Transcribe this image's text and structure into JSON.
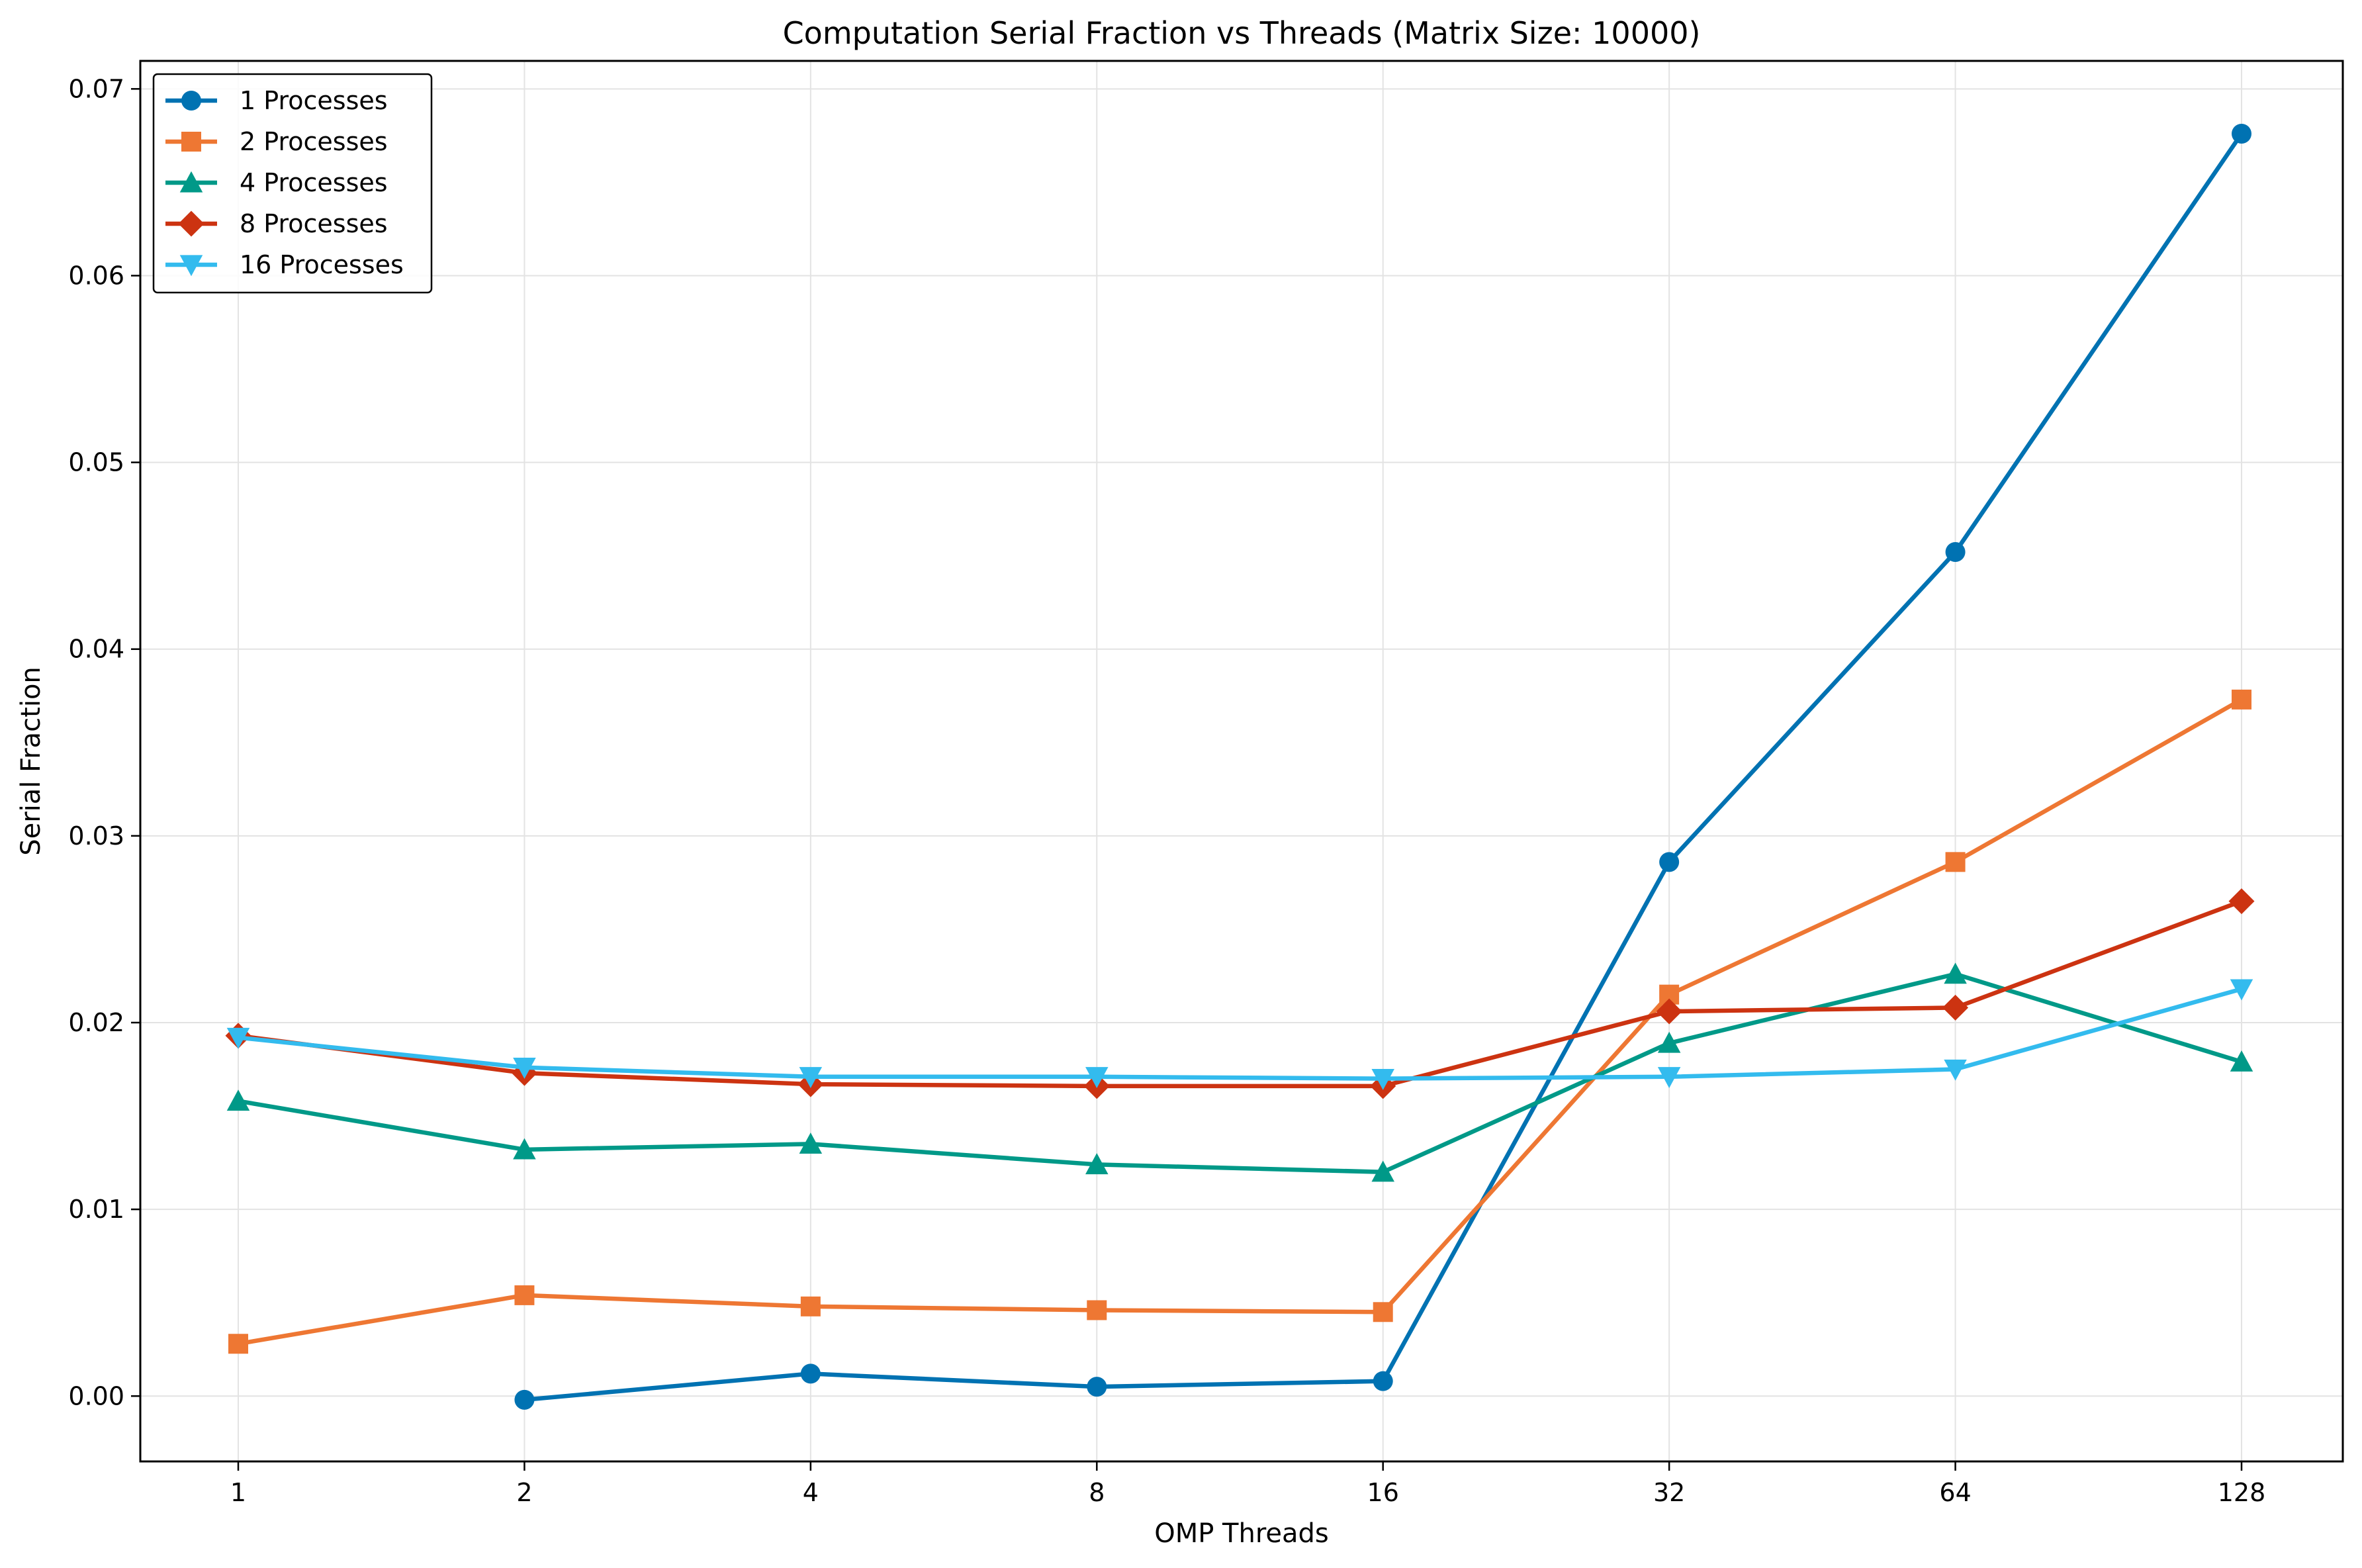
{
  "chart_data": {
    "type": "line",
    "title": "Computation Serial Fraction vs Threads (Matrix Size: 10000)",
    "xlabel": "OMP Threads",
    "ylabel": "Serial Fraction",
    "x_scale": "log2",
    "x": [
      1,
      2,
      4,
      8,
      16,
      32,
      64,
      128
    ],
    "x_tick_labels": [
      "1",
      "2",
      "4",
      "8",
      "16",
      "32",
      "64",
      "128"
    ],
    "y_ticks": [
      0.0,
      0.01,
      0.02,
      0.03,
      0.04,
      0.05,
      0.06,
      0.07
    ],
    "y_tick_labels": [
      "0.00",
      "0.01",
      "0.02",
      "0.03",
      "0.04",
      "0.05",
      "0.06",
      "0.07"
    ],
    "ylim": [
      -0.0035,
      0.0715
    ],
    "grid": true,
    "legend_position": "upper-left",
    "series": [
      {
        "name": "1 Processes",
        "color": "#0072b2",
        "marker": "circle",
        "values": [
          null,
          -0.0002,
          0.0012,
          0.0005,
          0.0008,
          0.0286,
          0.0452,
          0.0676
        ]
      },
      {
        "name": "2 Processes",
        "color": "#ee7733",
        "marker": "square",
        "values": [
          0.0028,
          0.0054,
          0.0048,
          0.0046,
          0.0045,
          0.0215,
          0.0286,
          0.0373
        ]
      },
      {
        "name": "4 Processes",
        "color": "#009988",
        "marker": "triangle-up",
        "values": [
          0.0158,
          0.0132,
          0.0135,
          0.0124,
          0.012,
          0.0189,
          0.0226,
          0.0179
        ]
      },
      {
        "name": "8 Processes",
        "color": "#cc3311",
        "marker": "diamond",
        "values": [
          0.0193,
          0.0173,
          0.0167,
          0.0166,
          0.0166,
          0.0206,
          0.0208,
          0.0265
        ]
      },
      {
        "name": "16 Processes",
        "color": "#33bbee",
        "marker": "triangle-down",
        "values": [
          0.0192,
          0.0176,
          0.0171,
          0.0171,
          0.017,
          0.0171,
          0.0175,
          0.0218
        ]
      }
    ]
  }
}
